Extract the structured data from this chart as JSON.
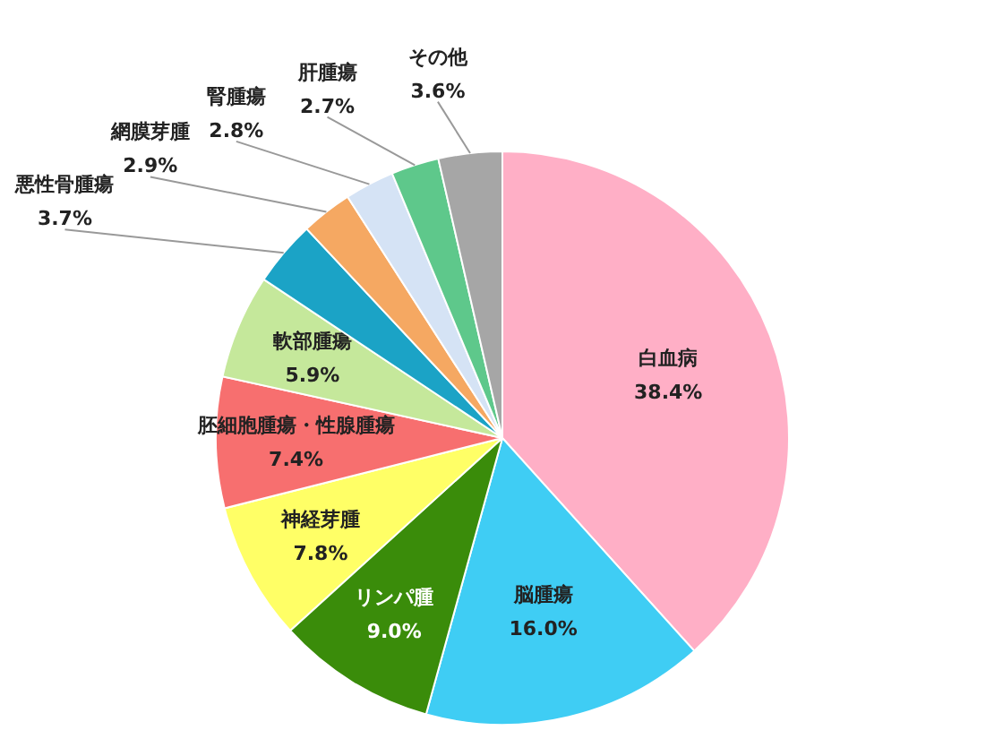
{
  "chart_data": {
    "type": "pie",
    "categories": [
      "白血病",
      "脳腫瘍",
      "リンパ腫",
      "神経芽腫",
      "胚細胞腫瘍・性腺腫瘍",
      "軟部腫瘍",
      "悪性骨腫瘍",
      "網膜芽腫",
      "腎腫瘍",
      "肝腫瘍",
      "その他"
    ],
    "values": [
      38.4,
      16.0,
      9.0,
      7.8,
      7.4,
      5.9,
      3.7,
      2.9,
      2.8,
      2.7,
      3.6
    ],
    "value_labels": [
      "38.4%",
      "16.0%",
      "9.0%",
      "7.8%",
      "7.4%",
      "5.9%",
      "3.7%",
      "2.9%",
      "2.8%",
      "2.7%",
      "3.6%"
    ],
    "colors": [
      "#ffafc6",
      "#3fcdf4",
      "#3a8c0a",
      "#ffff66",
      "#f76f6f",
      "#c5e89b",
      "#1ba3c6",
      "#f5a862",
      "#d5e3f5",
      "#5ec88b",
      "#a6a6a6"
    ]
  }
}
